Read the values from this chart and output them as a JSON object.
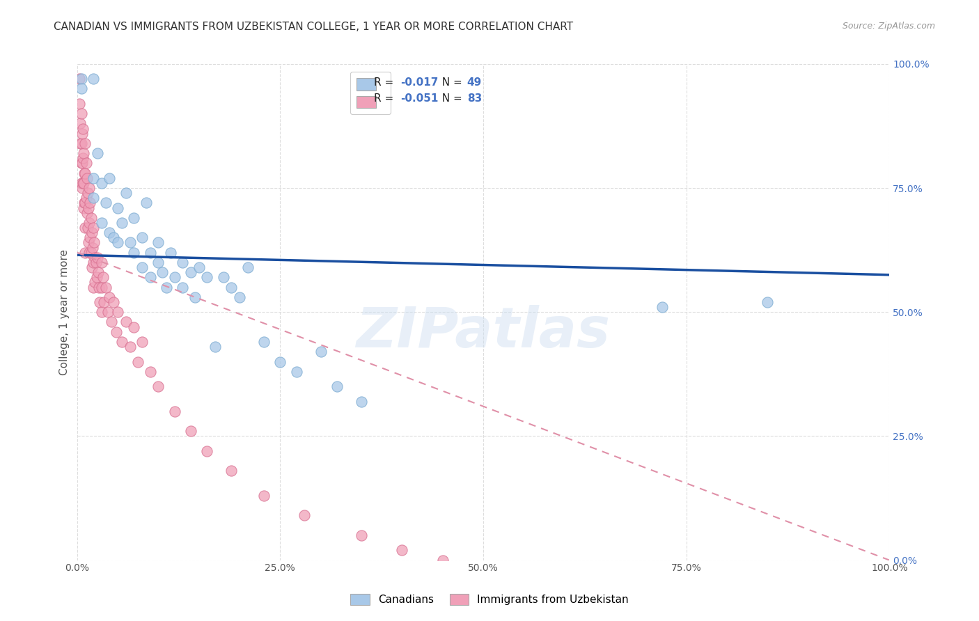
{
  "title": "CANADIAN VS IMMIGRANTS FROM UZBEKISTAN COLLEGE, 1 YEAR OR MORE CORRELATION CHART",
  "source_text": "Source: ZipAtlas.com",
  "ylabel": "College, 1 year or more",
  "xlim": [
    0,
    1.0
  ],
  "ylim": [
    0,
    1.0
  ],
  "xtick_labels": [
    "0.0%",
    "25.0%",
    "50.0%",
    "75.0%",
    "100.0%"
  ],
  "xtick_vals": [
    0,
    0.25,
    0.5,
    0.75,
    1.0
  ],
  "ytick_labels": [
    "0.0%",
    "25.0%",
    "50.0%",
    "75.0%",
    "100.0%"
  ],
  "ytick_vals": [
    0,
    0.25,
    0.5,
    0.75,
    1.0
  ],
  "watermark": "ZIPatlas",
  "r_canadian": -0.017,
  "n_canadian": 49,
  "r_uzbekistan": -0.051,
  "n_uzbekistan": 83,
  "canadian_color": "#a8c8e8",
  "canadian_edge_color": "#7aaad0",
  "uzbekistan_color": "#f0a0b8",
  "uzbekistan_edge_color": "#d87090",
  "trend_canadian_color": "#1a4fa0",
  "trend_uzbekistan_color": "#e090a8",
  "background_color": "#ffffff",
  "grid_color": "#dddddd",
  "title_fontsize": 11,
  "axis_label_fontsize": 11,
  "tick_fontsize": 10,
  "right_ytick_color": "#4472c4",
  "legend_blue_color": "#4472c4",
  "legend_r_label1": "R = ",
  "legend_r_val1": "-0.017",
  "legend_n_label1": "  N = ",
  "legend_n_val1": "49",
  "legend_r_label2": "R = ",
  "legend_r_val2": "-0.051",
  "legend_n_label2": "  N = ",
  "legend_n_val2": "83",
  "bottom_legend1": "Canadians",
  "bottom_legend2": "Immigrants from Uzbekistan",
  "canadians_x": [
    0.005,
    0.005,
    0.02,
    0.02,
    0.02,
    0.025,
    0.03,
    0.03,
    0.035,
    0.04,
    0.04,
    0.045,
    0.05,
    0.05,
    0.055,
    0.06,
    0.065,
    0.07,
    0.07,
    0.08,
    0.08,
    0.085,
    0.09,
    0.09,
    0.1,
    0.1,
    0.105,
    0.11,
    0.115,
    0.12,
    0.13,
    0.13,
    0.14,
    0.145,
    0.15,
    0.16,
    0.17,
    0.18,
    0.19,
    0.2,
    0.21,
    0.23,
    0.25,
    0.27,
    0.3,
    0.32,
    0.35,
    0.72,
    0.85
  ],
  "canadians_y": [
    0.97,
    0.95,
    0.97,
    0.77,
    0.73,
    0.82,
    0.76,
    0.68,
    0.72,
    0.66,
    0.77,
    0.65,
    0.64,
    0.71,
    0.68,
    0.74,
    0.64,
    0.62,
    0.69,
    0.65,
    0.59,
    0.72,
    0.62,
    0.57,
    0.6,
    0.64,
    0.58,
    0.55,
    0.62,
    0.57,
    0.6,
    0.55,
    0.58,
    0.53,
    0.59,
    0.57,
    0.43,
    0.57,
    0.55,
    0.53,
    0.59,
    0.44,
    0.4,
    0.38,
    0.42,
    0.35,
    0.32,
    0.51,
    0.52
  ],
  "uzbekistan_x": [
    0.003,
    0.003,
    0.004,
    0.004,
    0.005,
    0.005,
    0.005,
    0.005,
    0.006,
    0.006,
    0.006,
    0.007,
    0.007,
    0.007,
    0.008,
    0.008,
    0.008,
    0.009,
    0.009,
    0.01,
    0.01,
    0.01,
    0.01,
    0.01,
    0.011,
    0.011,
    0.012,
    0.012,
    0.013,
    0.013,
    0.014,
    0.014,
    0.015,
    0.015,
    0.015,
    0.016,
    0.016,
    0.017,
    0.017,
    0.018,
    0.018,
    0.019,
    0.02,
    0.02,
    0.02,
    0.021,
    0.022,
    0.022,
    0.023,
    0.024,
    0.025,
    0.026,
    0.027,
    0.028,
    0.03,
    0.03,
    0.03,
    0.032,
    0.033,
    0.035,
    0.038,
    0.04,
    0.042,
    0.045,
    0.048,
    0.05,
    0.055,
    0.06,
    0.065,
    0.07,
    0.075,
    0.08,
    0.09,
    0.1,
    0.12,
    0.14,
    0.16,
    0.19,
    0.23,
    0.28,
    0.35,
    0.4,
    0.45
  ],
  "uzbekistan_y": [
    0.97,
    0.92,
    0.88,
    0.84,
    0.9,
    0.84,
    0.8,
    0.76,
    0.86,
    0.8,
    0.75,
    0.87,
    0.81,
    0.76,
    0.82,
    0.76,
    0.71,
    0.78,
    0.72,
    0.84,
    0.78,
    0.72,
    0.67,
    0.62,
    0.8,
    0.73,
    0.77,
    0.7,
    0.74,
    0.67,
    0.71,
    0.64,
    0.75,
    0.68,
    0.62,
    0.72,
    0.65,
    0.69,
    0.62,
    0.66,
    0.59,
    0.63,
    0.67,
    0.6,
    0.55,
    0.64,
    0.61,
    0.56,
    0.6,
    0.57,
    0.61,
    0.58,
    0.55,
    0.52,
    0.6,
    0.55,
    0.5,
    0.57,
    0.52,
    0.55,
    0.5,
    0.53,
    0.48,
    0.52,
    0.46,
    0.5,
    0.44,
    0.48,
    0.43,
    0.47,
    0.4,
    0.44,
    0.38,
    0.35,
    0.3,
    0.26,
    0.22,
    0.18,
    0.13,
    0.09,
    0.05,
    0.02,
    0.0
  ],
  "trend_can_x0": 0.0,
  "trend_can_y0": 0.615,
  "trend_can_x1": 1.0,
  "trend_can_y1": 0.575,
  "trend_uzb_x0": 0.0,
  "trend_uzb_y0": 0.62,
  "trend_uzb_x1": 1.0,
  "trend_uzb_y1": 0.0
}
